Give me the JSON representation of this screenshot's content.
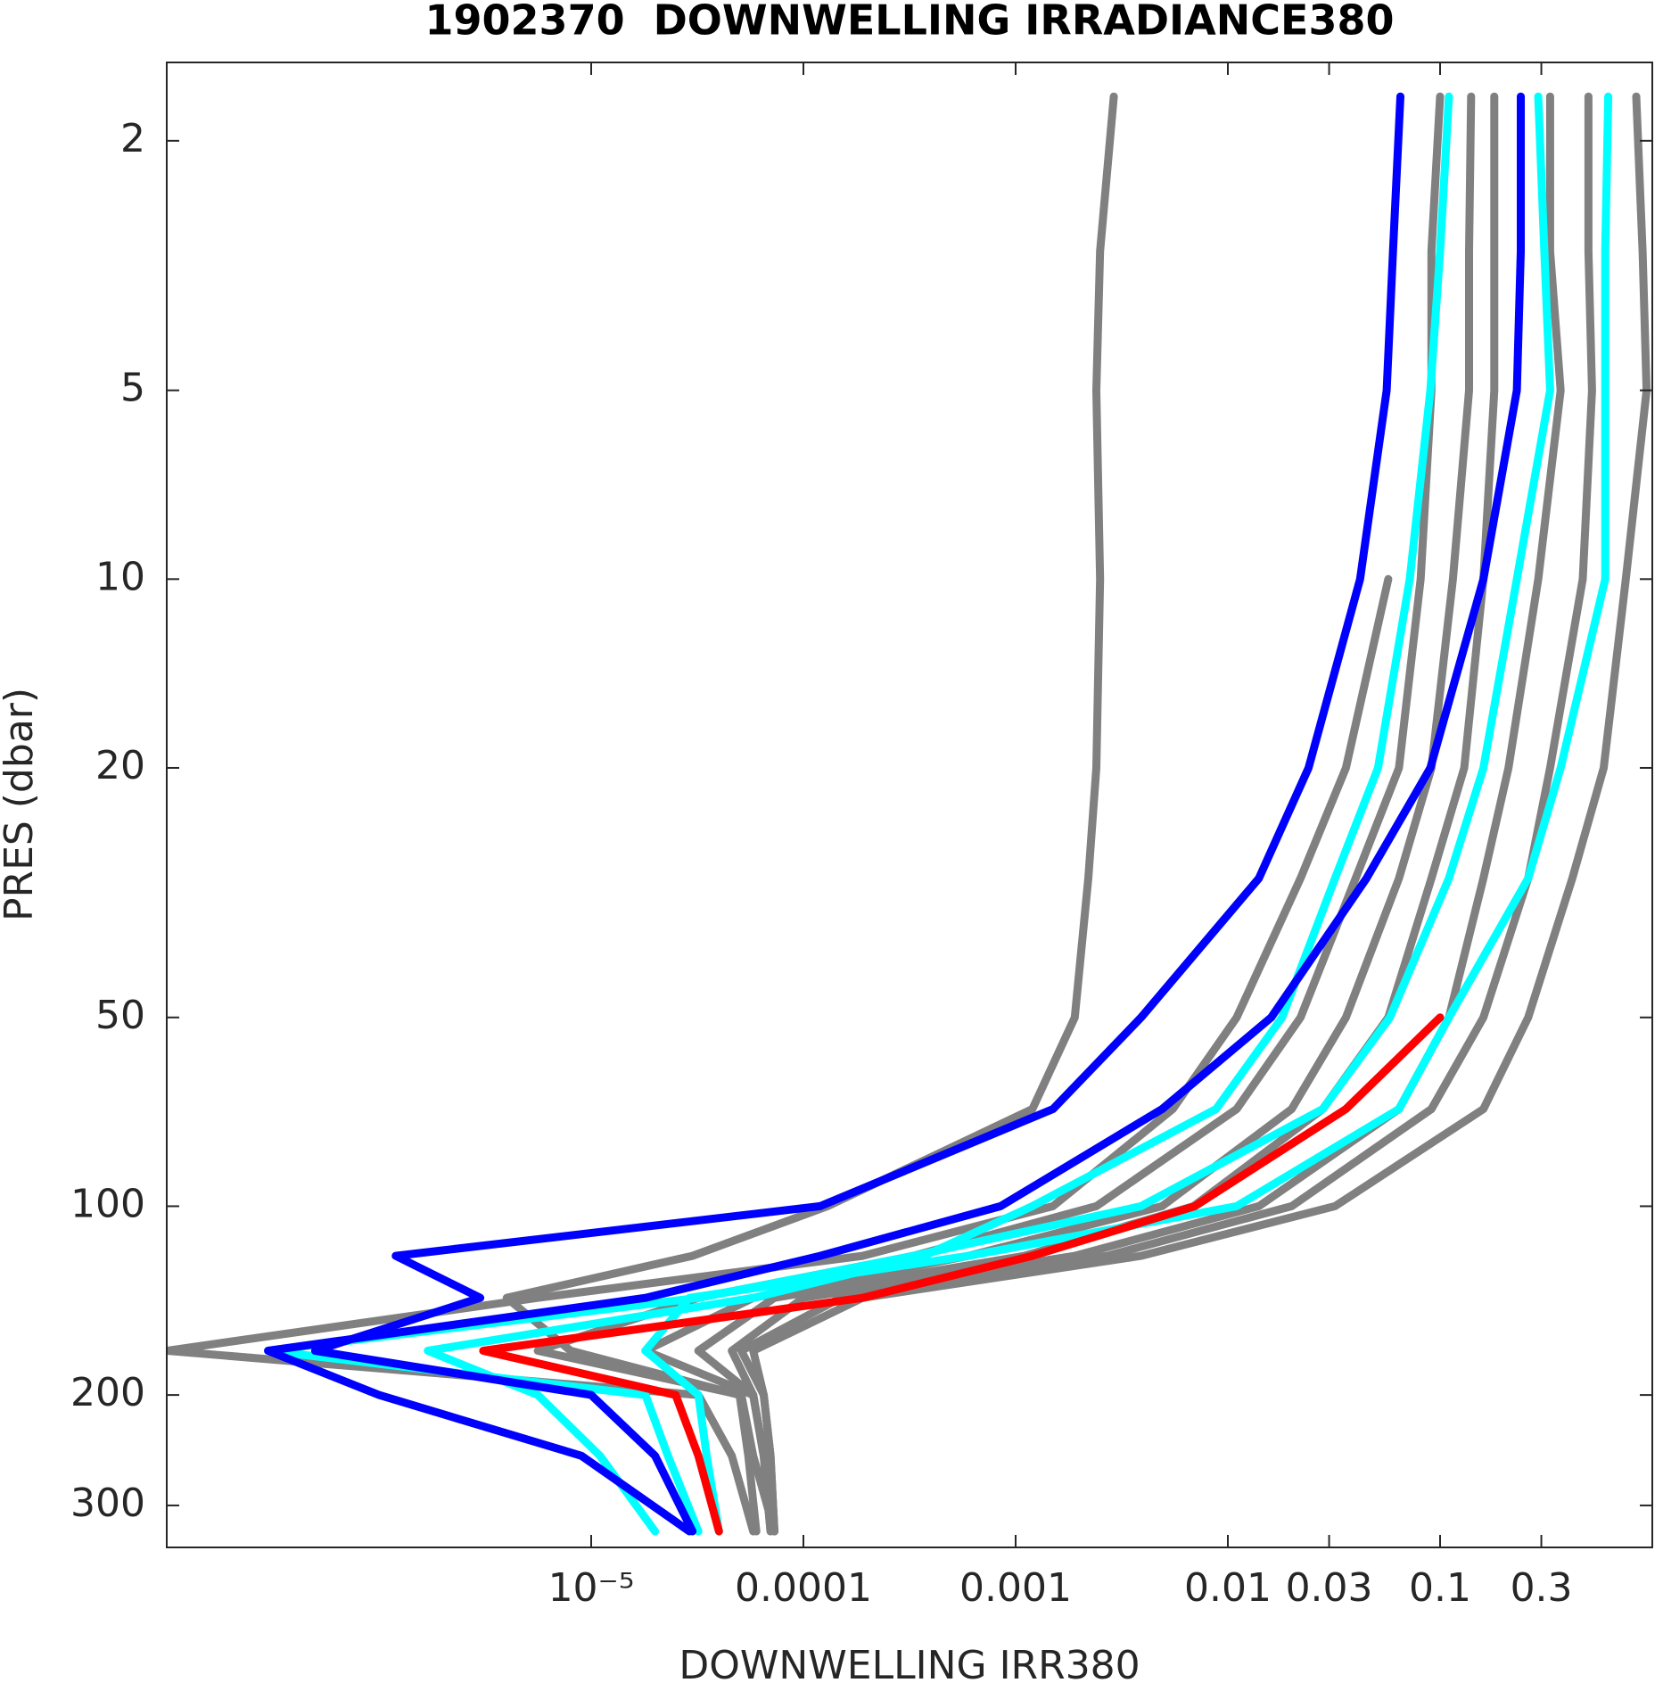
{
  "chart_data": {
    "type": "line",
    "title": "1902370  DOWNWELLING IRRADIANCE380",
    "x_label": "DOWNWELLING IRR380",
    "y_label": "PRES (dbar)",
    "xscale": "log",
    "yscale": "log",
    "y_inverted": true,
    "xlim": [
      1e-07,
      1
    ],
    "ylim": [
      1.5,
      350
    ],
    "xticks": [
      {
        "value": 1e-05,
        "label": "10⁻⁵"
      },
      0.0001,
      0.001,
      0.01,
      0.03,
      0.1,
      0.3
    ],
    "yticks": [
      2,
      5,
      10,
      20,
      50,
      100,
      200,
      300
    ],
    "y": [
      1.7,
      3,
      5,
      10,
      20,
      30,
      50,
      70,
      100,
      120,
      140,
      170,
      200,
      250,
      330
    ],
    "series": [
      {
        "color": "#808080",
        "values": [
          0.0029,
          0.0025,
          0.0024,
          0.0025,
          0.0024,
          0.0022,
          0.0019,
          0.0012,
          0.00013,
          3e-05,
          4e-06,
          8e-06,
          5e-05,
          5.5e-05,
          6e-05
        ]
      },
      {
        "color": "#808080",
        "values": [
          null,
          null,
          null,
          0.057,
          0.036,
          0.022,
          0.011,
          0.0055,
          0.0015,
          0.00019,
          5.6e-06,
          1e-07,
          3.2e-05,
          4.6e-05,
          5.8e-05
        ]
      },
      {
        "color": "#808080",
        "values": [
          0.1,
          0.091,
          0.091,
          0.081,
          0.064,
          0.04,
          0.022,
          0.011,
          0.0024,
          0.00033,
          3.2e-05,
          5.6e-06,
          5.1e-05,
          5.8e-05,
          7.3e-05
        ]
      },
      {
        "color": "#808080",
        "values": [
          0.14,
          0.137,
          0.137,
          0.115,
          0.091,
          0.064,
          0.036,
          0.02,
          0.0049,
          0.0006,
          5.8e-05,
          1.8e-05,
          5.8e-05,
          6.5e-05,
          7.3e-05
        ]
      },
      {
        "color": "#808080",
        "values": [
          0.18,
          0.18,
          0.18,
          0.16,
          0.13,
          0.091,
          0.057,
          0.028,
          0.0069,
          0.0011,
          7.3e-05,
          3.2e-05,
          5.8e-05,
          6.5e-05,
          7e-05
        ]
      },
      {
        "color": "#808080",
        "values": [
          0.33,
          0.33,
          0.37,
          0.29,
          0.21,
          0.16,
          0.11,
          0.064,
          0.014,
          0.0019,
          0.0001,
          4.6e-05,
          5.8e-05,
          6.5e-05,
          7e-05
        ]
      },
      {
        "color": "#808080",
        "values": [
          0.5,
          0.5,
          0.52,
          0.47,
          0.33,
          0.26,
          0.16,
          0.091,
          0.02,
          0.0027,
          0.00015,
          5.1e-05,
          6.5e-05,
          7e-05,
          7.3e-05
        ]
      },
      {
        "color": "#808080",
        "values": [
          0.84,
          0.9,
          0.94,
          0.75,
          0.59,
          0.42,
          0.26,
          0.16,
          0.032,
          0.0039,
          0.00019,
          5.8e-05,
          6.5e-05,
          7e-05,
          7.3e-05
        ]
      },
      {
        "color": "#00ffff",
        "values": [
          0.11,
          0.1,
          0.09,
          0.072,
          0.051,
          0.032,
          0.018,
          0.0088,
          0.0012,
          0.00037,
          5.8e-05,
          1.7e-06,
          5.6e-06,
          1.1e-05,
          2e-05
        ]
      },
      {
        "color": "#00ffff",
        "values": [
          0.29,
          0.31,
          0.33,
          0.23,
          0.16,
          0.11,
          0.058,
          0.028,
          0.0039,
          0.00033,
          3.2e-05,
          3e-07,
          1.8e-05,
          2.3e-05,
          3.2e-05
        ]
      },
      {
        "color": "#00ffff",
        "values": [
          0.62,
          0.6,
          0.6,
          0.6,
          0.37,
          0.26,
          0.11,
          0.064,
          0.011,
          0.0006,
          2.9e-05,
          1.8e-05,
          3.2e-05,
          3.5e-05,
          4e-05
        ]
      },
      {
        "color": "#0000ff",
        "values": [
          0.065,
          0.06,
          0.056,
          0.042,
          0.024,
          0.014,
          0.0039,
          0.0015,
          0.00012,
          1.2e-06,
          3e-06,
          5e-07,
          1e-05,
          2e-05,
          3e-05
        ]
      },
      {
        "color": "#0000ff",
        "values": [
          0.24,
          0.24,
          0.23,
          0.16,
          0.09,
          0.045,
          0.016,
          0.0049,
          0.00085,
          0.00012,
          1.8e-05,
          3e-07,
          1e-06,
          9e-06,
          2.9e-05
        ]
      },
      {
        "color": "#ff0000",
        "values": [
          null,
          null,
          null,
          null,
          null,
          null,
          0.1,
          0.036,
          0.007,
          0.0012,
          0.00019,
          3.1e-06,
          2.5e-05,
          3.2e-05,
          4e-05
        ]
      }
    ]
  }
}
